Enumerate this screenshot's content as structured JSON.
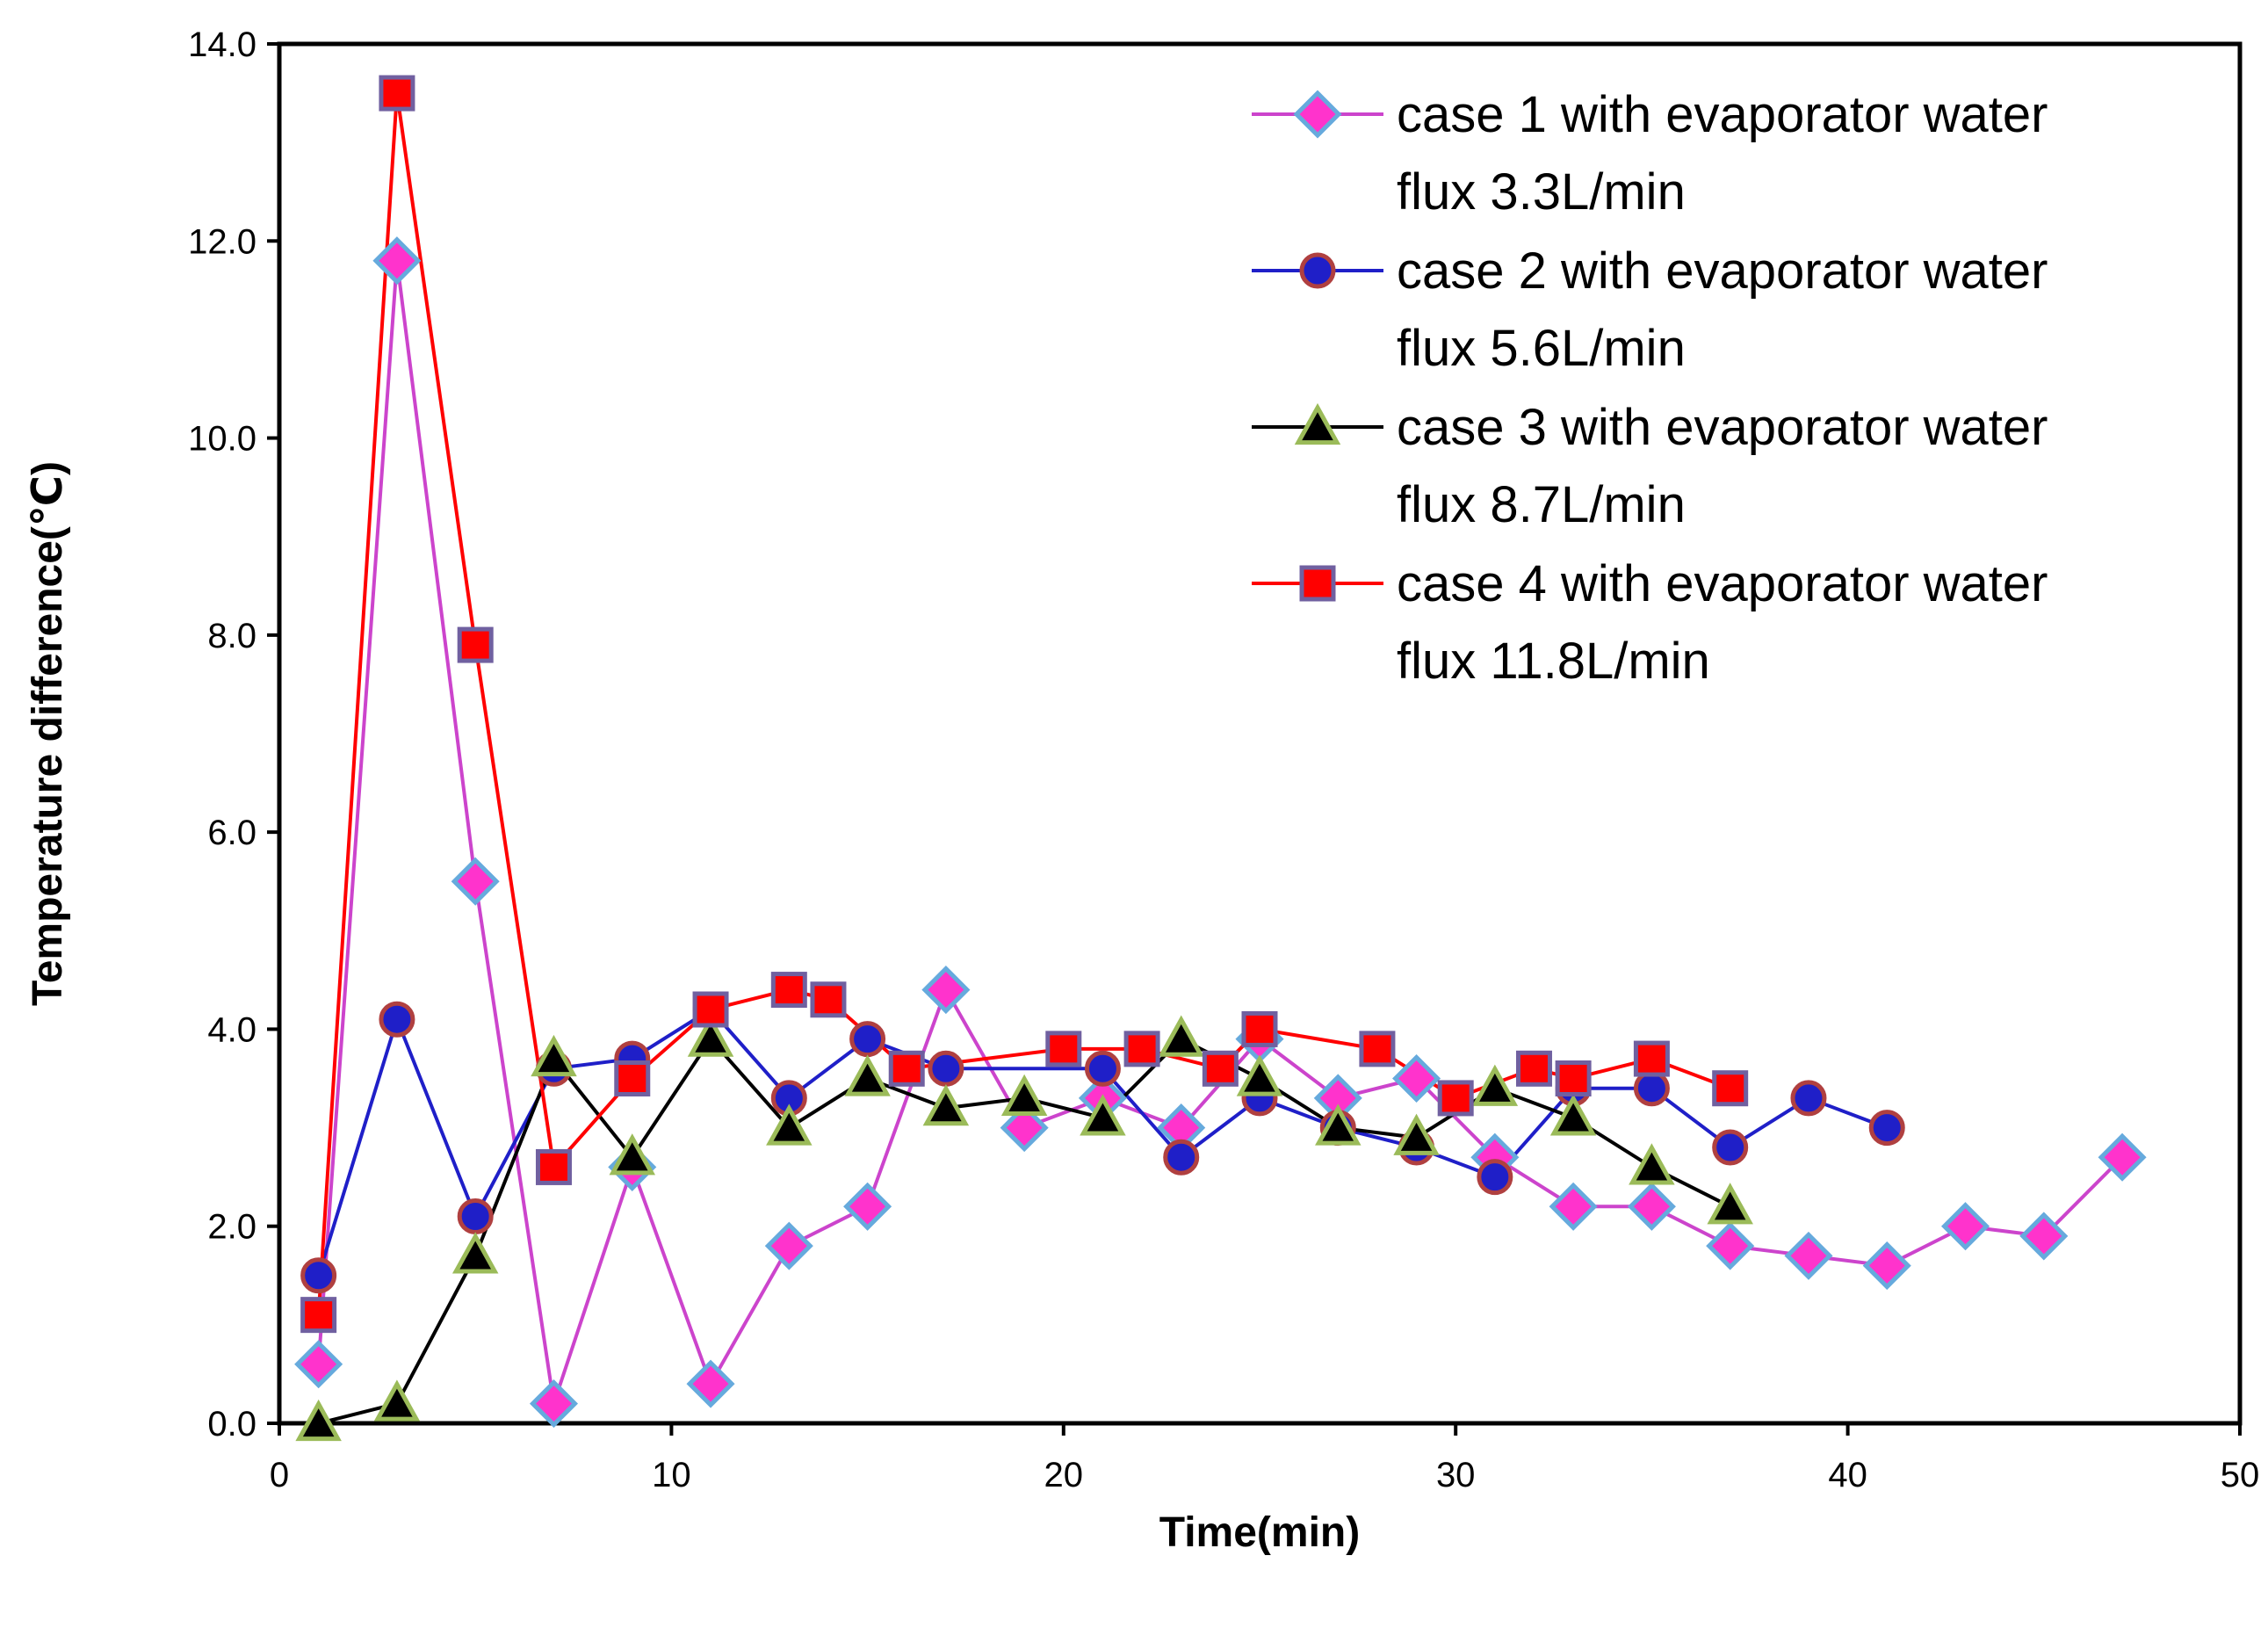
{
  "chart_data": {
    "type": "line",
    "title": "",
    "xlabel": "Time(min)",
    "ylabel": "Temperature difference(℃)",
    "xlim": [
      0,
      50
    ],
    "ylim": [
      0.0,
      14.0
    ],
    "x_ticks": [
      "0",
      "10",
      "20",
      "30",
      "40",
      "50"
    ],
    "y_ticks": [
      "0.0",
      "2.0",
      "4.0",
      "6.0",
      "8.0",
      "10.0",
      "12.0",
      "14.0"
    ],
    "grid": false,
    "legend_position": "top-right",
    "series": [
      {
        "name": "case 1 with evaporator water flux 3.3L/min",
        "legend_lines": [
          "case 1 with evaporator water",
          "flux 3.3L/min"
        ],
        "line_color": "#CC44CC",
        "marker": "diamond",
        "marker_fill": "#FF33CC",
        "marker_stroke": "#66AADD",
        "x": [
          1,
          3,
          5,
          7,
          9,
          11,
          13,
          15,
          17,
          19,
          21,
          23,
          25,
          27,
          29,
          31,
          33,
          35,
          37,
          39,
          41,
          43,
          45,
          47
        ],
        "y": [
          0.6,
          11.8,
          5.5,
          0.2,
          2.6,
          0.4,
          1.8,
          2.2,
          4.4,
          3.0,
          3.3,
          3.0,
          3.9,
          3.3,
          3.5,
          2.7,
          2.2,
          2.2,
          1.8,
          1.7,
          1.6,
          2.0,
          1.9,
          2.7
        ]
      },
      {
        "name": "case 2 with evaporator water flux 5.6L/min",
        "legend_lines": [
          "case 2 with evaporator water",
          "flux 5.6L/min"
        ],
        "line_color": "#1F1FC8",
        "marker": "circle",
        "marker_fill": "#1F1FC8",
        "marker_stroke": "#B04040",
        "x": [
          1,
          3,
          5,
          7,
          9,
          11,
          13,
          15,
          17,
          21,
          23,
          25,
          27,
          29,
          31,
          33,
          35,
          37,
          39,
          41
        ],
        "y": [
          1.5,
          4.1,
          2.1,
          3.6,
          3.7,
          4.2,
          3.3,
          3.9,
          3.6,
          3.6,
          2.7,
          3.3,
          3.0,
          2.8,
          2.5,
          3.4,
          3.4,
          2.8,
          3.3,
          3.0
        ]
      },
      {
        "name": "case 3 with evaporator water flux 8.7L/min",
        "legend_lines": [
          "case 3 with evaporator water",
          "flux 8.7L/min"
        ],
        "line_color": "#000000",
        "marker": "triangle",
        "marker_fill": "#000000",
        "marker_stroke": "#9BBB59",
        "x": [
          1,
          3,
          5,
          7,
          9,
          11,
          13,
          15,
          17,
          19,
          21,
          23,
          25,
          27,
          29,
          31,
          33,
          35,
          37
        ],
        "y": [
          0.0,
          0.2,
          1.7,
          3.7,
          2.7,
          3.9,
          3.0,
          3.5,
          3.2,
          3.3,
          3.1,
          3.9,
          3.5,
          3.0,
          2.9,
          3.4,
          3.1,
          2.6,
          2.2
        ]
      },
      {
        "name": "case 4 with evaporator water flux 11.8L/min",
        "legend_lines": [
          "case 4 with evaporator water",
          "flux 11.8L/min"
        ],
        "line_color": "#FF0000",
        "marker": "square",
        "marker_fill": "#FF0000",
        "marker_stroke": "#7060A0",
        "x": [
          1,
          3,
          5,
          7,
          9,
          11,
          13,
          14,
          16,
          20,
          22,
          24,
          25,
          28,
          30,
          32,
          33,
          35,
          37
        ],
        "y": [
          1.1,
          13.5,
          7.9,
          2.6,
          3.5,
          4.2,
          4.4,
          4.3,
          3.6,
          3.8,
          3.8,
          3.6,
          4.0,
          3.8,
          3.3,
          3.6,
          3.5,
          3.7,
          3.4
        ]
      }
    ]
  }
}
